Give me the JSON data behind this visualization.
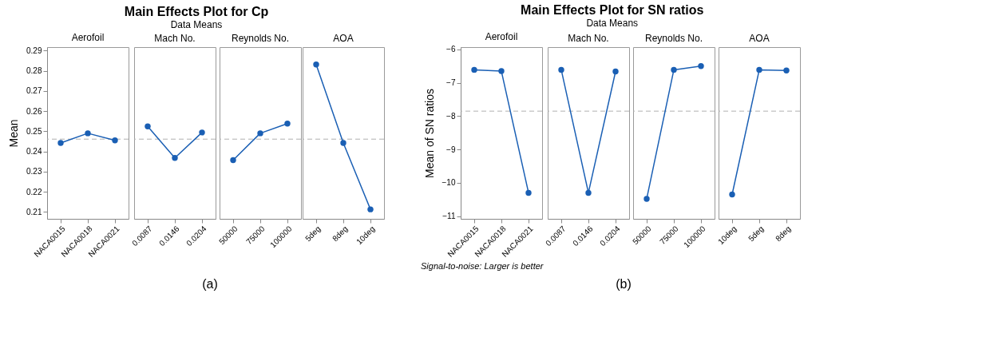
{
  "chart_data": [
    {
      "type": "line",
      "title": "Aerofoil",
      "ylabel": "Mean",
      "categories": [
        "NACA0015",
        "NACA0018",
        "NACA0021"
      ],
      "values": [
        0.2442,
        0.249,
        0.2455
      ],
      "color": "#1a5fb4",
      "ylim": [
        0.2066,
        0.2917
      ],
      "yticks": [
        0.21,
        0.22,
        0.23,
        0.24,
        0.25,
        0.26,
        0.27,
        0.28,
        0.29
      ],
      "ref_lines": [
        {
          "axis": "y",
          "value": 0.2461,
          "color": "#b0b0b0",
          "line_style": "dashed"
        }
      ],
      "marker": "circle",
      "grid": false,
      "annotations": [
        "Main Effects Plot for Cp",
        "Data Means",
        "(a)"
      ]
    },
    {
      "type": "line",
      "title": "Mach No.",
      "categories": [
        "0.0087",
        "0.0146",
        "0.0204"
      ],
      "values": [
        0.2524,
        0.2368,
        0.2494
      ],
      "color": "#1a5fb4",
      "ylim": [
        0.2066,
        0.2917
      ],
      "yticks": [
        0.21,
        0.22,
        0.23,
        0.24,
        0.25,
        0.26,
        0.27,
        0.28,
        0.29
      ],
      "ref_lines": [
        {
          "axis": "y",
          "value": 0.2461,
          "color": "#b0b0b0",
          "line_style": "dashed"
        }
      ],
      "marker": "circle",
      "grid": false,
      "tick_labels": "x"
    },
    {
      "type": "line",
      "title": "Reynolds No.",
      "categories": [
        "50000",
        "75000",
        "100000"
      ],
      "values": [
        0.2357,
        0.249,
        0.2538
      ],
      "color": "#1a5fb4",
      "ylim": [
        0.2066,
        0.2917
      ],
      "yticks": [
        0.21,
        0.22,
        0.23,
        0.24,
        0.25,
        0.26,
        0.27,
        0.28,
        0.29
      ],
      "ref_lines": [
        {
          "axis": "y",
          "value": 0.2461,
          "color": "#b0b0b0",
          "line_style": "dashed"
        }
      ],
      "marker": "circle",
      "grid": false,
      "tick_labels": "x"
    },
    {
      "type": "line",
      "title": "AOA",
      "categories": [
        "5deg",
        "8deg",
        "10deg"
      ],
      "values": [
        0.2831,
        0.2442,
        0.2113
      ],
      "color": "#1a5fb4",
      "ylim": [
        0.2066,
        0.2917
      ],
      "yticks": [
        0.21,
        0.22,
        0.23,
        0.24,
        0.25,
        0.26,
        0.27,
        0.28,
        0.29
      ],
      "ref_lines": [
        {
          "axis": "y",
          "value": 0.2461,
          "color": "#b0b0b0",
          "line_style": "dashed"
        }
      ],
      "marker": "circle",
      "grid": false,
      "tick_labels": "x"
    },
    {
      "type": "line",
      "title": "Aerofoil",
      "ylabel": "Mean of SN ratios",
      "categories": [
        "NACA0015",
        "NACA0018",
        "NACA0021"
      ],
      "values": [
        -6.61,
        -6.65,
        -10.3
      ],
      "color": "#1a5fb4",
      "ylim": [
        -11.08,
        -5.93
      ],
      "yticks": [
        -11,
        -10,
        -9,
        -8,
        -7,
        -6
      ],
      "ref_lines": [
        {
          "axis": "y",
          "value": -7.85,
          "color": "#b0b0b0",
          "line_style": "dashed"
        }
      ],
      "marker": "circle",
      "grid": false,
      "annotations": [
        "Main Effects Plot for SN ratios",
        "Data Means",
        "Signal-to-noise: Larger is better",
        "(b)"
      ]
    },
    {
      "type": "line",
      "title": "Mach No.",
      "categories": [
        "0.0087",
        "0.0146",
        "0.0204"
      ],
      "values": [
        -6.61,
        -10.3,
        -6.66
      ],
      "color": "#1a5fb4",
      "ylim": [
        -11.08,
        -5.93
      ],
      "yticks": [
        -11,
        -10,
        -9,
        -8,
        -7,
        -6
      ],
      "ref_lines": [
        {
          "axis": "y",
          "value": -7.85,
          "color": "#b0b0b0",
          "line_style": "dashed"
        }
      ],
      "marker": "circle",
      "grid": false,
      "tick_labels": "x"
    },
    {
      "type": "line",
      "title": "Reynolds No.",
      "categories": [
        "50000",
        "75000",
        "100000"
      ],
      "values": [
        -10.48,
        -6.61,
        -6.5
      ],
      "color": "#1a5fb4",
      "ylim": [
        -11.08,
        -5.93
      ],
      "yticks": [
        -11,
        -10,
        -9,
        -8,
        -7,
        -6
      ],
      "ref_lines": [
        {
          "axis": "y",
          "value": -7.85,
          "color": "#b0b0b0",
          "line_style": "dashed"
        }
      ],
      "marker": "circle",
      "grid": false,
      "tick_labels": "x"
    },
    {
      "type": "line",
      "title": "AOA",
      "categories": [
        "10deg",
        "5deg",
        "8deg"
      ],
      "values": [
        -10.35,
        -6.61,
        -6.63
      ],
      "color": "#1a5fb4",
      "ylim": [
        -11.08,
        -5.93
      ],
      "yticks": [
        -11,
        -10,
        -9,
        -8,
        -7,
        -6
      ],
      "ref_lines": [
        {
          "axis": "y",
          "value": -7.85,
          "color": "#b0b0b0",
          "line_style": "dashed"
        }
      ],
      "marker": "circle",
      "grid": false,
      "tick_labels": "x"
    }
  ]
}
